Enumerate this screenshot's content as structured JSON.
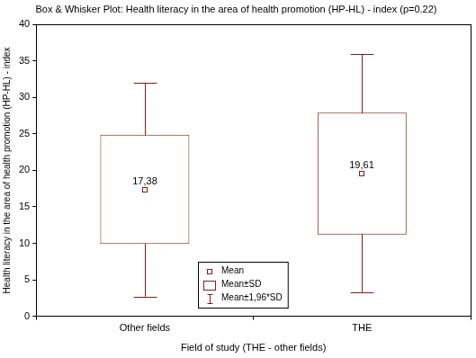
{
  "chart_data": {
    "type": "box",
    "title": "Box & Whisker Plot: Health literacy in the area of health promotion (HP-HL) - index (p=0.22)",
    "x_label": "Field of study (THE - other fields)",
    "y_label": "Health literacy in the area of health promotion (HP-HL) - index",
    "categories": [
      "Other fields",
      "THE"
    ],
    "series": [
      {
        "name": "Mean",
        "marker": "square",
        "values": [
          17.38,
          19.61
        ],
        "value_labels": [
          "17,38",
          "19,61"
        ]
      },
      {
        "name": "Mean±SD",
        "marker": "box",
        "values": [
          [
            9.9,
            24.9
          ],
          [
            11.2,
            27.9
          ]
        ]
      },
      {
        "name": "Mean±1,96*SD",
        "marker": "whisker",
        "values": [
          [
            2.7,
            32.0
          ],
          [
            3.3,
            35.9
          ]
        ]
      }
    ],
    "color": "#7b1f1f",
    "ylim": [
      0,
      40
    ],
    "yticks": [
      0,
      5,
      10,
      15,
      20,
      25,
      30,
      35,
      40
    ],
    "grid": false,
    "legend": "bottom",
    "data_labels": true
  }
}
